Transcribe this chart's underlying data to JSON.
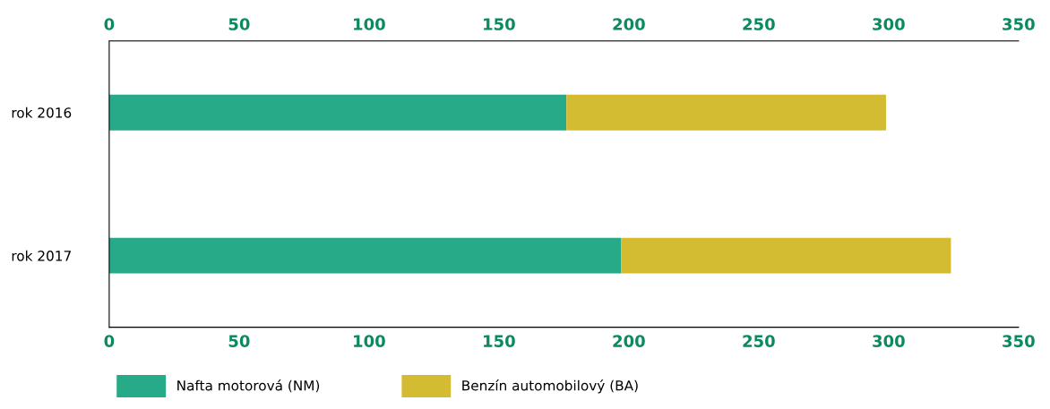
{
  "chart_data": {
    "type": "bar",
    "orientation": "horizontal",
    "stacked": true,
    "categories": [
      "rok 2016",
      "rok 2017"
    ],
    "series": [
      {
        "name": "Nafta motorová (NM)",
        "color": "#27aa88",
        "values": [
          176,
          197
        ]
      },
      {
        "name": "Benzín automobilový (BA)",
        "color": "#d4bc32",
        "values": [
          123,
          127
        ]
      }
    ],
    "xlim": [
      0,
      350
    ],
    "xticks": [
      0,
      50,
      100,
      150,
      200,
      250,
      300,
      350
    ],
    "x2lim": [
      0,
      350
    ],
    "x2ticks": [
      0,
      50,
      100,
      150,
      200,
      250,
      300,
      350
    ],
    "grid": false,
    "legend": "bottom left"
  }
}
